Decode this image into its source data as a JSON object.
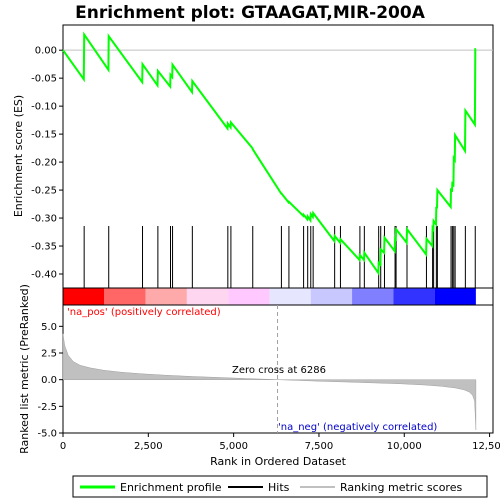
{
  "title": "Enrichment plot: GTAAGAT,MIR-200A",
  "colors": {
    "profile": "#00ff00",
    "hits": "#000000",
    "metric_fill": "#c0c0c0",
    "zero_line": "#c0c0c0",
    "pos_label": "#ff0000",
    "neg_label": "#0000cd",
    "gradient": [
      "#ff0000",
      "#ff6666",
      "#ffaaaa",
      "#ffd6f0",
      "#ffc8ff",
      "#e6e6ff",
      "#c8c8ff",
      "#7f7fff",
      "#3333ff",
      "#0000ff"
    ]
  },
  "top_panel": {
    "ylabel": "Enrichment score (ES)",
    "yticks": [
      "0.00",
      "-0.05",
      "-0.10",
      "-0.15",
      "-0.20",
      "-0.25",
      "-0.30",
      "-0.35",
      "-0.40"
    ],
    "ylim": [
      -0.425,
      0.045
    ]
  },
  "bottom_panel": {
    "ylabel": "Ranked list metric (PreRanked)",
    "yticks": [
      "5.0",
      "2.5",
      "0.0",
      "-2.5",
      "-5.0"
    ],
    "ylim": [
      -5.0,
      7.0
    ],
    "zero_cross_label": "Zero cross at 6286",
    "pos_label": "'na_pos' (positively correlated)",
    "neg_label": "'na_neg' (negatively correlated)"
  },
  "xaxis": {
    "label": "Rank in Ordered Dataset",
    "ticks": [
      "0",
      "2,500",
      "5,000",
      "7,500",
      "10,000",
      "12,500"
    ],
    "xlim": [
      0,
      12600
    ]
  },
  "legend": {
    "items": [
      {
        "label": "Enrichment profile",
        "icon": "green-line-icon"
      },
      {
        "label": "Hits",
        "icon": "black-line-icon"
      },
      {
        "label": "Ranking metric scores",
        "icon": "gray-line-icon"
      }
    ]
  },
  "chart_data": {
    "type": "line",
    "title": "Enrichment plot: GTAAGAT,MIR-200A",
    "xlabel": "Rank in Ordered Dataset",
    "ylabel": "Enrichment score (ES)",
    "n_genes": 12100,
    "zero_cross": 6286,
    "hits": [
      620,
      1340,
      2330,
      2780,
      3150,
      3210,
      3790,
      4830,
      4920,
      5560,
      6400,
      6620,
      7050,
      7170,
      7260,
      7330,
      7960,
      8130,
      8700,
      8830,
      9250,
      9310,
      9420,
      9730,
      9760,
      10080,
      10650,
      10830,
      10860,
      10940,
      10970,
      11370,
      11410,
      11450,
      11490,
      11790,
      12080
    ],
    "enrichment_profile": {
      "x": [
        0,
        610,
        620,
        1330,
        1340,
        2320,
        2330,
        2770,
        2780,
        3140,
        3150,
        3200,
        3210,
        3780,
        3790,
        4820,
        4830,
        4910,
        4920,
        5550,
        5560,
        6390,
        6400,
        6610,
        6620,
        7040,
        7050,
        7160,
        7170,
        7250,
        7260,
        7320,
        7330,
        7950,
        7960,
        8120,
        8130,
        8690,
        8700,
        8820,
        8830,
        9240,
        9250,
        9300,
        9310,
        9410,
        9420,
        9720,
        9730,
        9750,
        9760,
        10070,
        10080,
        10640,
        10650,
        10820,
        10830,
        10850,
        10860,
        10930,
        10940,
        10960,
        10970,
        11360,
        11370,
        11400,
        11410,
        11440,
        11450,
        11480,
        11490,
        11780,
        11790,
        12070,
        12080,
        12100
      ],
      "y": [
        0.0,
        -0.052,
        0.028,
        -0.035,
        0.025,
        -0.057,
        -0.025,
        -0.063,
        -0.037,
        -0.065,
        -0.044,
        -0.048,
        -0.026,
        -0.075,
        -0.055,
        -0.14,
        -0.131,
        -0.138,
        -0.129,
        -0.175,
        -0.177,
        -0.256,
        -0.256,
        -0.272,
        -0.271,
        -0.296,
        -0.294,
        -0.302,
        -0.297,
        -0.304,
        -0.293,
        -0.298,
        -0.291,
        -0.341,
        -0.332,
        -0.344,
        -0.338,
        -0.375,
        -0.366,
        -0.375,
        -0.362,
        -0.398,
        -0.38,
        -0.383,
        -0.356,
        -0.362,
        -0.335,
        -0.359,
        -0.337,
        -0.338,
        -0.32,
        -0.344,
        -0.32,
        -0.365,
        -0.337,
        -0.35,
        -0.318,
        -0.32,
        -0.305,
        -0.311,
        -0.28,
        -0.283,
        -0.25,
        -0.28,
        -0.247,
        -0.253,
        -0.235,
        -0.244,
        -0.193,
        -0.196,
        -0.152,
        -0.18,
        -0.108,
        -0.133,
        0.002,
        0.002
      ]
    },
    "ranked_metric": {
      "x": [
        0,
        50,
        150,
        300,
        500,
        800,
        1200,
        1700,
        2300,
        3000,
        3800,
        4600,
        5400,
        6000,
        6286,
        6800,
        7500,
        8300,
        9100,
        9900,
        10600,
        11100,
        11500,
        11750,
        11900,
        12000,
        12060,
        12100
      ],
      "y": [
        4.3,
        3.2,
        2.3,
        1.7,
        1.35,
        1.1,
        0.88,
        0.7,
        0.55,
        0.42,
        0.3,
        0.2,
        0.1,
        0.03,
        0.0,
        -0.06,
        -0.14,
        -0.22,
        -0.3,
        -0.39,
        -0.5,
        -0.62,
        -0.78,
        -0.95,
        -1.15,
        -1.45,
        -2.0,
        -4.7
      ]
    }
  }
}
